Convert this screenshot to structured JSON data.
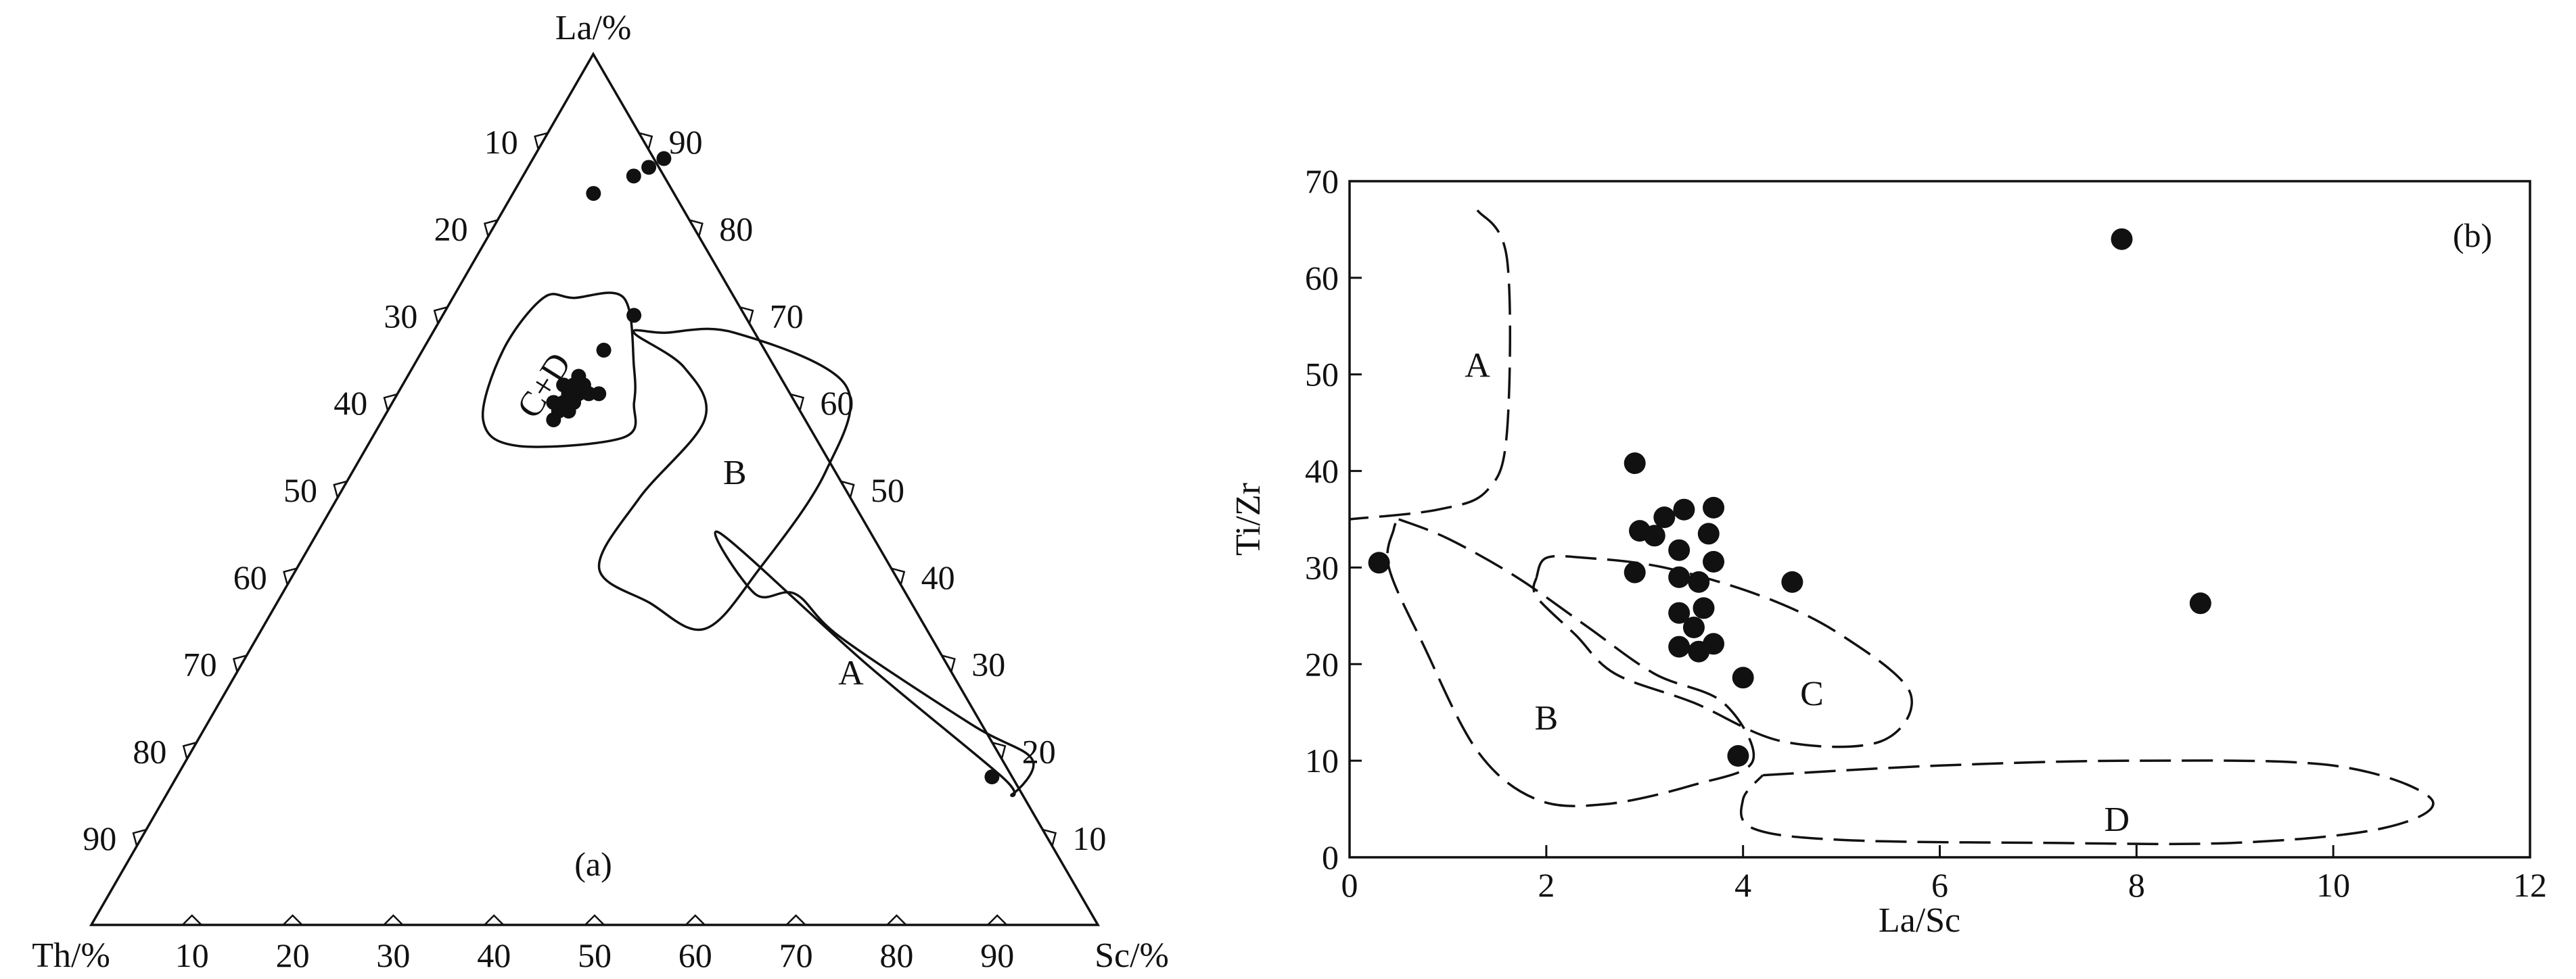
{
  "chart_data": [
    {
      "type": "ternary",
      "panel_label": "(a)",
      "axes": {
        "top": {
          "label": "La/%",
          "ticks": [
            "10",
            "20",
            "30",
            "40",
            "50",
            "60",
            "70",
            "80",
            "90"
          ]
        },
        "left_corner_label": "Th/%",
        "right_corner_label": "Sc/%",
        "left_side_ticks": [
          "10",
          "20",
          "30",
          "40",
          "50",
          "60",
          "70",
          "80",
          "90"
        ],
        "right_side_ticks": [
          "90",
          "80",
          "70",
          "60",
          "50",
          "40",
          "30",
          "20",
          "10"
        ],
        "bottom_ticks": [
          "10",
          "20",
          "30",
          "40",
          "50",
          "60",
          "70",
          "80",
          "90"
        ]
      },
      "fields": [
        {
          "name": "A",
          "label": "A",
          "points_la_sc": [
            [
              38,
              47
            ],
            [
              45,
              40
            ],
            [
              30,
              62
            ],
            [
              17,
              82
            ],
            [
              15,
              84
            ],
            [
              19,
              84
            ],
            [
              23,
              76
            ],
            [
              33,
              58
            ],
            [
              38,
              51
            ]
          ]
        },
        {
          "name": "B",
          "label": "B",
          "points_la_sc": [
            [
              68,
              20
            ],
            [
              64,
              27
            ],
            [
              58,
              32
            ],
            [
              49,
              30
            ],
            [
              41,
              30
            ],
            [
              37,
              37
            ],
            [
              34,
              44
            ],
            [
              41,
              46
            ],
            [
              52,
              47
            ],
            [
              62,
              44
            ],
            [
              68,
              30
            ],
            [
              68,
              23
            ]
          ]
        },
        {
          "name": "C+D",
          "label": "C+D",
          "points_la_sc": [
            [
              72,
              9
            ],
            [
              66,
              8
            ],
            [
              58,
              10
            ],
            [
              55,
              15
            ],
            [
              56,
              25
            ],
            [
              60,
              24
            ],
            [
              64,
              22
            ],
            [
              72,
              17
            ],
            [
              72,
              12
            ]
          ]
        }
      ],
      "points_la_sc": [
        [
          88,
          13
        ],
        [
          87,
          12
        ],
        [
          86,
          11
        ],
        [
          84,
          8
        ],
        [
          70,
          19
        ],
        [
          66,
          18
        ],
        [
          63,
          17
        ],
        [
          62,
          17
        ],
        [
          61,
          18
        ],
        [
          61,
          17
        ],
        [
          61,
          17
        ],
        [
          60,
          17
        ],
        [
          60,
          18
        ],
        [
          59,
          17
        ],
        [
          58,
          17
        ],
        [
          61,
          19
        ],
        [
          60,
          18
        ],
        [
          62,
          18
        ],
        [
          59,
          18
        ],
        [
          62,
          16
        ],
        [
          60,
          17
        ],
        [
          60,
          16
        ],
        [
          61,
          20
        ],
        [
          17,
          81
        ]
      ]
    },
    {
      "type": "scatter",
      "panel_label": "(b)",
      "xlabel": "La/Sc",
      "ylabel": "Ti/Zr",
      "xlim": [
        0,
        12
      ],
      "ylim": [
        0,
        70
      ],
      "xticks": [
        "0",
        "2",
        "4",
        "6",
        "8",
        "10",
        "12"
      ],
      "yticks": [
        "0",
        "10",
        "20",
        "30",
        "40",
        "50",
        "60",
        "70"
      ],
      "fields": [
        {
          "name": "A",
          "label": "A",
          "points": [
            [
              1.3,
              67
            ],
            [
              1.6,
              62
            ],
            [
              1.6,
              44
            ],
            [
              1.4,
              38
            ],
            [
              0.9,
              36
            ],
            [
              0,
              35
            ]
          ]
        },
        {
          "name": "B",
          "label": "B",
          "points": [
            [
              0.5,
              35
            ],
            [
              1.0,
              33
            ],
            [
              1.7,
              29
            ],
            [
              2.4,
              24
            ],
            [
              3.1,
              19
            ],
            [
              3.8,
              16
            ],
            [
              4.1,
              10
            ],
            [
              3.5,
              7.5
            ],
            [
              2.6,
              5.5
            ],
            [
              1.9,
              6
            ],
            [
              1.3,
              11
            ],
            [
              0.75,
              22
            ],
            [
              0.4,
              30
            ],
            [
              0.45,
              34
            ],
            [
              0.5,
              35
            ]
          ]
        },
        {
          "name": "C",
          "label": "C",
          "points": [
            [
              1.9,
              29
            ],
            [
              2.0,
              31
            ],
            [
              2.4,
              31
            ],
            [
              3.2,
              30
            ],
            [
              4.2,
              27
            ],
            [
              5.0,
              23
            ],
            [
              5.7,
              17
            ],
            [
              5.4,
              12
            ],
            [
              4.4,
              12
            ],
            [
              3.5,
              16
            ],
            [
              2.7,
              19
            ],
            [
              2.3,
              23
            ],
            [
              1.9,
              27
            ],
            [
              1.9,
              29
            ]
          ]
        },
        {
          "name": "D",
          "label": "D",
          "points": [
            [
              4.2,
              8.5
            ],
            [
              6.0,
              9.5
            ],
            [
              8.0,
              10
            ],
            [
              10.0,
              9.5
            ],
            [
              11.0,
              6
            ],
            [
              10.5,
              3
            ],
            [
              9.0,
              1.5
            ],
            [
              7.0,
              1.5
            ],
            [
              5.0,
              1.8
            ],
            [
              4.1,
              3
            ],
            [
              4.0,
              6
            ],
            [
              4.2,
              8.5
            ]
          ]
        }
      ],
      "points": [
        [
          0.3,
          30.5
        ],
        [
          2.9,
          40.8
        ],
        [
          3.2,
          35.2
        ],
        [
          3.4,
          36.0
        ],
        [
          3.7,
          36.2
        ],
        [
          2.95,
          33.8
        ],
        [
          3.1,
          33.3
        ],
        [
          3.65,
          33.5
        ],
        [
          3.35,
          31.8
        ],
        [
          3.7,
          30.6
        ],
        [
          2.9,
          29.5
        ],
        [
          3.35,
          29.0
        ],
        [
          3.55,
          28.5
        ],
        [
          4.5,
          28.5
        ],
        [
          3.6,
          25.8
        ],
        [
          3.35,
          25.3
        ],
        [
          3.5,
          23.8
        ],
        [
          3.7,
          22.1
        ],
        [
          3.35,
          21.8
        ],
        [
          3.55,
          21.3
        ],
        [
          4.0,
          18.6
        ],
        [
          3.95,
          10.5
        ],
        [
          7.85,
          64.0
        ],
        [
          8.65,
          26.3
        ]
      ]
    }
  ]
}
